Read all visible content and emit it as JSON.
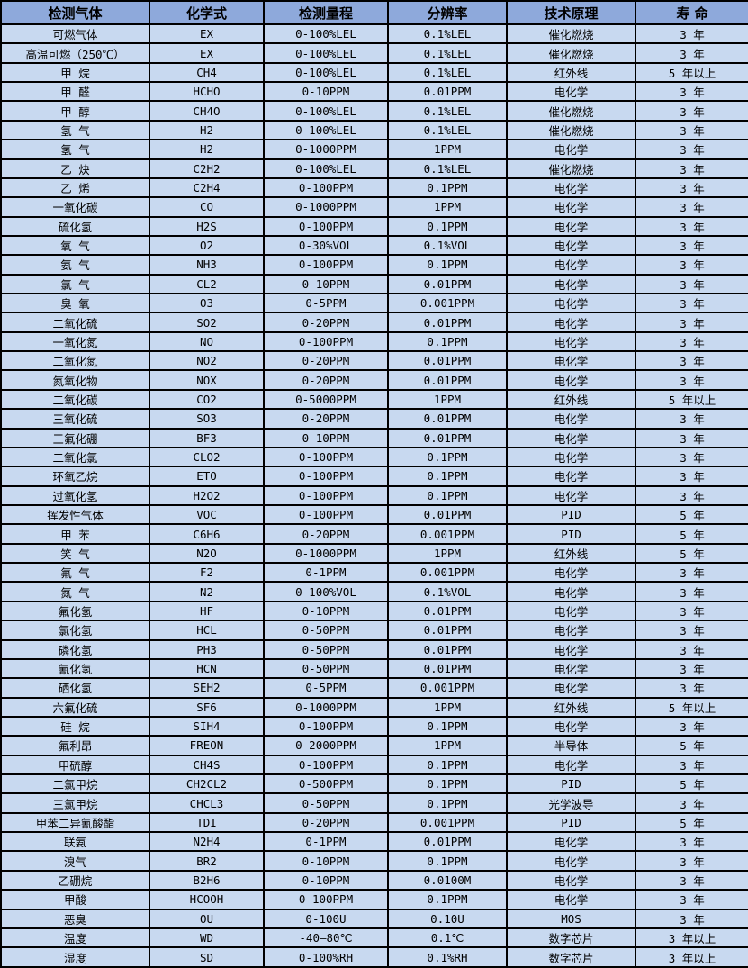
{
  "colors": {
    "header_bg": "#8ea9db",
    "row_bg": "#c8d9f0",
    "border": "#000000",
    "text": "#000000"
  },
  "table": {
    "columns": [
      {
        "key": "gas",
        "label": "检测气体"
      },
      {
        "key": "formula",
        "label": "化学式"
      },
      {
        "key": "range",
        "label": "检测量程"
      },
      {
        "key": "resolution",
        "label": "分辨率"
      },
      {
        "key": "principle",
        "label": "技术原理"
      },
      {
        "key": "lifespan",
        "label": "寿 命"
      }
    ],
    "rows": [
      {
        "gas": "可燃气体",
        "formula": "EX",
        "range": "0-100%LEL",
        "resolution": "0.1%LEL",
        "principle": "催化燃烧",
        "lifespan": "3 年"
      },
      {
        "gas": "高温可燃（250℃）",
        "formula": "EX",
        "range": "0-100%LEL",
        "resolution": "0.1%LEL",
        "principle": "催化燃烧",
        "lifespan": "3 年"
      },
      {
        "gas": "甲 烷",
        "formula": "CH4",
        "range": "0-100%LEL",
        "resolution": "0.1%LEL",
        "principle": "红外线",
        "lifespan": "5 年以上"
      },
      {
        "gas": "甲 醛",
        "formula": "HCHO",
        "range": "0-10PPM",
        "resolution": "0.01PPM",
        "principle": "电化学",
        "lifespan": "3 年"
      },
      {
        "gas": "甲 醇",
        "formula": "CH4O",
        "range": "0-100%LEL",
        "resolution": "0.1%LEL",
        "principle": "催化燃烧",
        "lifespan": "3 年"
      },
      {
        "gas": "氢 气",
        "formula": "H2",
        "range": "0-100%LEL",
        "resolution": "0.1%LEL",
        "principle": "催化燃烧",
        "lifespan": "3 年"
      },
      {
        "gas": "氢 气",
        "formula": "H2",
        "range": "0-1000PPM",
        "resolution": "1PPM",
        "principle": "电化学",
        "lifespan": "3 年"
      },
      {
        "gas": "乙 炔",
        "formula": "C2H2",
        "range": "0-100%LEL",
        "resolution": "0.1%LEL",
        "principle": "催化燃烧",
        "lifespan": "3 年"
      },
      {
        "gas": "乙 烯",
        "formula": "C2H4",
        "range": "0-100PPM",
        "resolution": "0.1PPM",
        "principle": "电化学",
        "lifespan": "3 年"
      },
      {
        "gas": "一氧化碳",
        "formula": "CO",
        "range": "0-1000PPM",
        "resolution": "1PPM",
        "principle": "电化学",
        "lifespan": "3 年"
      },
      {
        "gas": "硫化氢",
        "formula": "H2S",
        "range": "0-100PPM",
        "resolution": "0.1PPM",
        "principle": "电化学",
        "lifespan": "3 年"
      },
      {
        "gas": "氧 气",
        "formula": "O2",
        "range": "0-30%VOL",
        "resolution": "0.1%VOL",
        "principle": "电化学",
        "lifespan": "3 年"
      },
      {
        "gas": "氨 气",
        "formula": "NH3",
        "range": "0-100PPM",
        "resolution": "0.1PPM",
        "principle": "电化学",
        "lifespan": "3 年"
      },
      {
        "gas": "氯 气",
        "formula": "CL2",
        "range": "0-10PPM",
        "resolution": "0.01PPM",
        "principle": "电化学",
        "lifespan": "3 年"
      },
      {
        "gas": "臭 氧",
        "formula": "O3",
        "range": "0-5PPM",
        "resolution": "0.001PPM",
        "principle": "电化学",
        "lifespan": "3 年"
      },
      {
        "gas": "二氧化硫",
        "formula": "SO2",
        "range": "0-20PPM",
        "resolution": "0.01PPM",
        "principle": "电化学",
        "lifespan": "3 年"
      },
      {
        "gas": "一氧化氮",
        "formula": "NO",
        "range": "0-100PPM",
        "resolution": "0.1PPM",
        "principle": "电化学",
        "lifespan": "3 年"
      },
      {
        "gas": "二氧化氮",
        "formula": "NO2",
        "range": "0-20PPM",
        "resolution": "0.01PPM",
        "principle": "电化学",
        "lifespan": "3 年"
      },
      {
        "gas": "氮氧化物",
        "formula": "NOX",
        "range": "0-20PPM",
        "resolution": "0.01PPM",
        "principle": "电化学",
        "lifespan": "3 年"
      },
      {
        "gas": "二氧化碳",
        "formula": "CO2",
        "range": "0-5000PPM",
        "resolution": "1PPM",
        "principle": "红外线",
        "lifespan": "5 年以上"
      },
      {
        "gas": "三氧化硫",
        "formula": "SO3",
        "range": "0-20PPM",
        "resolution": "0.01PPM",
        "principle": "电化学",
        "lifespan": "3 年"
      },
      {
        "gas": "三氟化硼",
        "formula": "BF3",
        "range": "0-10PPM",
        "resolution": "0.01PPM",
        "principle": "电化学",
        "lifespan": "3 年"
      },
      {
        "gas": "二氧化氯",
        "formula": "CLO2",
        "range": "0-100PPM",
        "resolution": "0.1PPM",
        "principle": "电化学",
        "lifespan": "3 年"
      },
      {
        "gas": "环氧乙烷",
        "formula": "ETO",
        "range": "0-100PPM",
        "resolution": "0.1PPM",
        "principle": "电化学",
        "lifespan": "3 年"
      },
      {
        "gas": "过氧化氢",
        "formula": "H2O2",
        "range": "0-100PPM",
        "resolution": "0.1PPM",
        "principle": "电化学",
        "lifespan": "3 年"
      },
      {
        "gas": "挥发性气体",
        "formula": "VOC",
        "range": "0-100PPM",
        "resolution": "0.01PPM",
        "principle": "PID",
        "lifespan": "5 年"
      },
      {
        "gas": "甲 苯",
        "formula": "C6H6",
        "range": "0-20PPM",
        "resolution": "0.001PPM",
        "principle": "PID",
        "lifespan": "5 年"
      },
      {
        "gas": "笑 气",
        "formula": "N2O",
        "range": "0-1000PPM",
        "resolution": "1PPM",
        "principle": "红外线",
        "lifespan": "5 年"
      },
      {
        "gas": "氟 气",
        "formula": "F2",
        "range": "0-1PPM",
        "resolution": "0.001PPM",
        "principle": "电化学",
        "lifespan": "3 年"
      },
      {
        "gas": "氮 气",
        "formula": "N2",
        "range": "0-100%VOL",
        "resolution": "0.1%VOL",
        "principle": "电化学",
        "lifespan": "3 年"
      },
      {
        "gas": "氟化氢",
        "formula": "HF",
        "range": "0-10PPM",
        "resolution": "0.01PPM",
        "principle": "电化学",
        "lifespan": "3 年"
      },
      {
        "gas": "氯化氢",
        "formula": "HCL",
        "range": "0-50PPM",
        "resolution": "0.01PPM",
        "principle": "电化学",
        "lifespan": "3 年"
      },
      {
        "gas": "磷化氢",
        "formula": "PH3",
        "range": "0-50PPM",
        "resolution": "0.01PPM",
        "principle": "电化学",
        "lifespan": "3 年"
      },
      {
        "gas": "氰化氢",
        "formula": "HCN",
        "range": "0-50PPM",
        "resolution": "0.01PPM",
        "principle": "电化学",
        "lifespan": "3 年"
      },
      {
        "gas": "硒化氢",
        "formula": "SEH2",
        "range": "0-5PPM",
        "resolution": "0.001PPM",
        "principle": "电化学",
        "lifespan": "3 年"
      },
      {
        "gas": "六氟化硫",
        "formula": "SF6",
        "range": "0-1000PPM",
        "resolution": "1PPM",
        "principle": "红外线",
        "lifespan": "5 年以上"
      },
      {
        "gas": "硅 烷",
        "formula": "SIH4",
        "range": "0-100PPM",
        "resolution": "0.1PPM",
        "principle": "电化学",
        "lifespan": "3 年"
      },
      {
        "gas": "氟利昂",
        "formula": "FREON",
        "range": "0-2000PPM",
        "resolution": "1PPM",
        "principle": "半导体",
        "lifespan": "5 年"
      },
      {
        "gas": "甲硫醇",
        "formula": "CH4S",
        "range": "0-100PPM",
        "resolution": "0.1PPM",
        "principle": "电化学",
        "lifespan": "3 年"
      },
      {
        "gas": "二氯甲烷",
        "formula": "CH2CL2",
        "range": "0-500PPM",
        "resolution": "0.1PPM",
        "principle": "PID",
        "lifespan": "5 年"
      },
      {
        "gas": "三氯甲烷",
        "formula": "CHCL3",
        "range": "0-50PPM",
        "resolution": "0.1PPM",
        "principle": "光学波导",
        "lifespan": "3 年"
      },
      {
        "gas": "甲苯二异氰酸酯",
        "formula": "TDI",
        "range": "0-20PPM",
        "resolution": "0.001PPM",
        "principle": "PID",
        "lifespan": "5 年"
      },
      {
        "gas": "联氨",
        "formula": "N2H4",
        "range": "0-1PPM",
        "resolution": "0.01PPM",
        "principle": "电化学",
        "lifespan": "3 年"
      },
      {
        "gas": "溴气",
        "formula": "BR2",
        "range": "0-10PPM",
        "resolution": "0.1PPM",
        "principle": "电化学",
        "lifespan": "3 年"
      },
      {
        "gas": "乙硼烷",
        "formula": "B2H6",
        "range": "0-10PPM",
        "resolution": "0.0100M",
        "principle": "电化学",
        "lifespan": "3 年"
      },
      {
        "gas": "甲酸",
        "formula": "HCOOH",
        "range": "0-100PPM",
        "resolution": "0.1PPM",
        "principle": "电化学",
        "lifespan": "3 年"
      },
      {
        "gas": "恶臭",
        "formula": "OU",
        "range": "0-100U",
        "resolution": "0.10U",
        "principle": "MOS",
        "lifespan": "3 年"
      },
      {
        "gas": "温度",
        "formula": "WD",
        "range": "-40—80℃",
        "resolution": "0.1℃",
        "principle": "数字芯片",
        "lifespan": "3 年以上"
      },
      {
        "gas": "湿度",
        "formula": "SD",
        "range": "0-100%RH",
        "resolution": "0.1%RH",
        "principle": "数字芯片",
        "lifespan": "3 年以上"
      }
    ]
  }
}
